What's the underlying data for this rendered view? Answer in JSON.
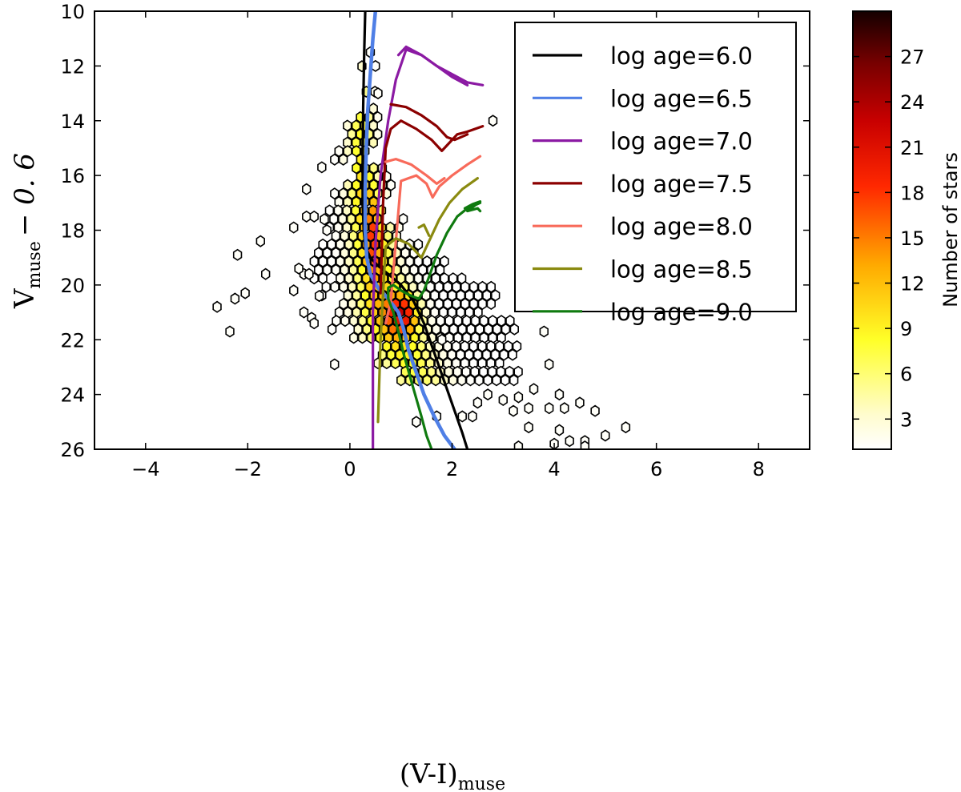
{
  "chart_data": {
    "type": "scatter",
    "subtype": "hexbin color-magnitude diagram with isochrone lines",
    "xlabel_main": "(V-I)",
    "xlabel_sub": "muse",
    "ylabel_main": "V",
    "ylabel_sub": "muse",
    "ylabel_suffix": "− 0. 6",
    "xlim": [
      -5,
      9
    ],
    "ylim": [
      26,
      10
    ],
    "y_inverted": true,
    "xticks": [
      -4,
      -2,
      0,
      2,
      4,
      6,
      8
    ],
    "xtick_labels": [
      "−4",
      "−2",
      "0",
      "2",
      "4",
      "6",
      "8"
    ],
    "yticks": [
      10,
      12,
      14,
      16,
      18,
      20,
      22,
      24,
      26
    ],
    "ytick_labels": [
      "10",
      "12",
      "14",
      "16",
      "18",
      "20",
      "22",
      "24",
      "26"
    ],
    "legend_position": "top-right",
    "series": [
      {
        "name": "log age=6.0",
        "color": "#000000",
        "x": [
          0.3,
          0.28,
          0.26,
          0.25,
          0.25,
          0.27,
          0.3,
          0.4,
          0.55,
          0.75,
          1.0,
          1.25,
          1.45,
          1.6,
          1.75,
          1.9,
          2.05,
          2.2,
          2.3
        ],
        "y": [
          10.0,
          11.5,
          13.5,
          15.5,
          17.0,
          18.0,
          18.6,
          19.0,
          19.3,
          19.6,
          20.0,
          20.6,
          21.4,
          22.2,
          23.0,
          23.8,
          24.6,
          25.4,
          26.0
        ]
      },
      {
        "name": "log age=6.5",
        "color": "#4f7fe6",
        "x": [
          0.5,
          0.45,
          0.4,
          0.35,
          0.32,
          0.3,
          0.3,
          0.33,
          0.4,
          0.55,
          0.75,
          0.95,
          1.05,
          1.15,
          1.3,
          1.45,
          1.65,
          1.85,
          2.05
        ],
        "y": [
          10.0,
          11.0,
          12.3,
          13.6,
          15.0,
          16.5,
          18.0,
          19.0,
          19.6,
          20.1,
          20.5,
          21.0,
          21.6,
          22.4,
          23.2,
          24.0,
          24.8,
          25.5,
          26.0
        ]
      },
      {
        "name": "log age=7.0",
        "color": "#8b1aa3",
        "segments": [
          {
            "x": [
              0.45,
              0.45,
              0.5,
              0.6,
              0.75,
              0.9,
              1.1,
              1.4,
              1.7,
              2.0,
              2.3,
              2.6
            ],
            "y": [
              26.0,
              21.0,
              18.5,
              16.0,
              14.0,
              12.5,
              11.4,
              11.6,
              12.0,
              12.3,
              12.6,
              12.7
            ]
          },
          {
            "x": [
              0.95,
              1.1,
              1.4,
              1.7,
              2.0,
              2.3
            ],
            "y": [
              11.6,
              11.3,
              11.6,
              12.0,
              12.4,
              12.7
            ]
          }
        ]
      },
      {
        "name": "log age=7.5",
        "color": "#8b0000",
        "segments": [
          {
            "x": [
              0.6,
              0.65,
              0.7,
              0.8,
              1.0,
              1.3,
              1.6,
              1.8,
              1.95,
              2.1,
              2.3,
              2.6
            ],
            "y": [
              20.3,
              17.0,
              15.0,
              14.3,
              14.0,
              14.3,
              14.7,
              15.1,
              14.8,
              14.5,
              14.4,
              14.2
            ]
          },
          {
            "x": [
              0.8,
              1.1,
              1.4,
              1.7,
              1.9,
              2.05,
              2.3
            ],
            "y": [
              13.4,
              13.5,
              13.8,
              14.2,
              14.6,
              14.7,
              14.5
            ]
          }
        ]
      },
      {
        "name": "log age=8.0",
        "color": "#f86a5a",
        "segments": [
          {
            "x": [
              0.7,
              0.8,
              1.0,
              1.3,
              1.5,
              1.62,
              1.75,
              2.0,
              2.3,
              2.55
            ],
            "y": [
              21.4,
              20.6,
              16.2,
              16.0,
              16.3,
              16.8,
              16.4,
              16.0,
              15.6,
              15.3
            ]
          },
          {
            "x": [
              0.7,
              0.9,
              1.2,
              1.5,
              1.7,
              1.85
            ],
            "y": [
              15.5,
              15.4,
              15.6,
              16.0,
              16.3,
              16.1
            ]
          }
        ]
      },
      {
        "name": "log age=8.5",
        "color": "#8a8a10",
        "segments": [
          {
            "x": [
              0.55,
              0.6,
              0.7,
              0.9,
              1.15,
              1.4,
              1.5,
              1.6,
              1.75,
              1.95,
              2.2,
              2.5
            ],
            "y": [
              25.0,
              22.0,
              18.6,
              18.3,
              18.5,
              19.0,
              18.6,
              18.2,
              17.6,
              17.0,
              16.5,
              16.1
            ]
          },
          {
            "x": [
              1.35,
              1.45,
              1.55
            ],
            "y": [
              17.9,
              17.8,
              18.2
            ]
          }
        ]
      },
      {
        "name": "log age=9.0",
        "color": "#0f7a0f",
        "segments": [
          {
            "x": [
              1.6,
              1.5,
              1.4,
              1.2,
              1.05,
              0.95,
              0.85,
              0.75,
              0.75,
              0.85,
              1.0,
              1.2,
              1.35,
              1.45,
              1.55,
              1.7,
              1.9,
              2.1,
              2.3,
              2.55
            ],
            "y": [
              26.0,
              25.5,
              24.8,
              23.5,
              22.5,
              21.7,
              21.0,
              20.5,
              20.1,
              20.0,
              20.2,
              20.4,
              20.5,
              20.2,
              19.7,
              18.9,
              18.1,
              17.5,
              17.2,
              17.0
            ]
          },
          {
            "x": [
              2.25,
              2.4,
              2.55,
              2.3,
              2.5,
              2.55
            ],
            "y": [
              17.2,
              17.05,
              16.95,
              17.3,
              17.2,
              17.3
            ]
          }
        ]
      }
    ],
    "hexbin": {
      "colormap": "hot_r",
      "vmin": 1,
      "vmax": 30,
      "hex_dx": 0.17,
      "hex_dy": 0.31,
      "colorbar_ticks": [
        3,
        6,
        9,
        12,
        15,
        18,
        21,
        24,
        27
      ],
      "colorbar_tick_labels": [
        "3",
        "6",
        "9",
        "12",
        "15",
        "18",
        "21",
        "24",
        "27"
      ],
      "colorbar_label": "Number of stars",
      "scatter_points": [
        [
          -2.6,
          20.8
        ],
        [
          -2.35,
          21.7
        ],
        [
          -2.25,
          20.5
        ],
        [
          -2.05,
          20.3
        ],
        [
          -2.2,
          18.9
        ],
        [
          -1.75,
          18.4
        ],
        [
          -1.65,
          19.6
        ],
        [
          -1.1,
          20.2
        ],
        [
          -0.9,
          19.6
        ],
        [
          -1.0,
          19.4
        ],
        [
          -0.8,
          19.6
        ],
        [
          -0.9,
          21.0
        ],
        [
          -0.75,
          21.2
        ],
        [
          -0.7,
          21.4
        ],
        [
          -0.6,
          20.4
        ],
        [
          -0.85,
          17.5
        ],
        [
          -0.7,
          17.5
        ],
        [
          -0.85,
          16.5
        ],
        [
          -0.5,
          17.6
        ],
        [
          -0.45,
          18.0
        ],
        [
          -0.3,
          22.9
        ],
        [
          -0.55,
          15.7
        ],
        [
          -1.1,
          17.9
        ],
        [
          0.5,
          12.0
        ],
        [
          0.55,
          13.0
        ],
        [
          0.4,
          11.5
        ],
        [
          3.8,
          21.7
        ],
        [
          3.9,
          22.9
        ],
        [
          4.1,
          24.0
        ],
        [
          3.9,
          24.5
        ],
        [
          4.2,
          24.5
        ],
        [
          4.5,
          24.3
        ],
        [
          4.8,
          24.6
        ],
        [
          4.1,
          25.3
        ],
        [
          4.0,
          25.8
        ],
        [
          4.3,
          25.7
        ],
        [
          4.6,
          25.7
        ],
        [
          4.6,
          25.9
        ],
        [
          5.0,
          25.5
        ],
        [
          5.4,
          25.2
        ],
        [
          3.3,
          25.9
        ],
        [
          3.5,
          25.2
        ],
        [
          2.8,
          14.0
        ],
        [
          1.7,
          24.8
        ],
        [
          1.3,
          25.0
        ],
        [
          2.2,
          24.8
        ],
        [
          2.4,
          24.8
        ],
        [
          2.5,
          24.3
        ],
        [
          1.8,
          22.0
        ],
        [
          2.7,
          24.0
        ],
        [
          3.0,
          24.2
        ],
        [
          3.2,
          24.6
        ],
        [
          3.5,
          24.5
        ],
        [
          3.3,
          24.1
        ],
        [
          3.6,
          23.8
        ]
      ]
    }
  }
}
